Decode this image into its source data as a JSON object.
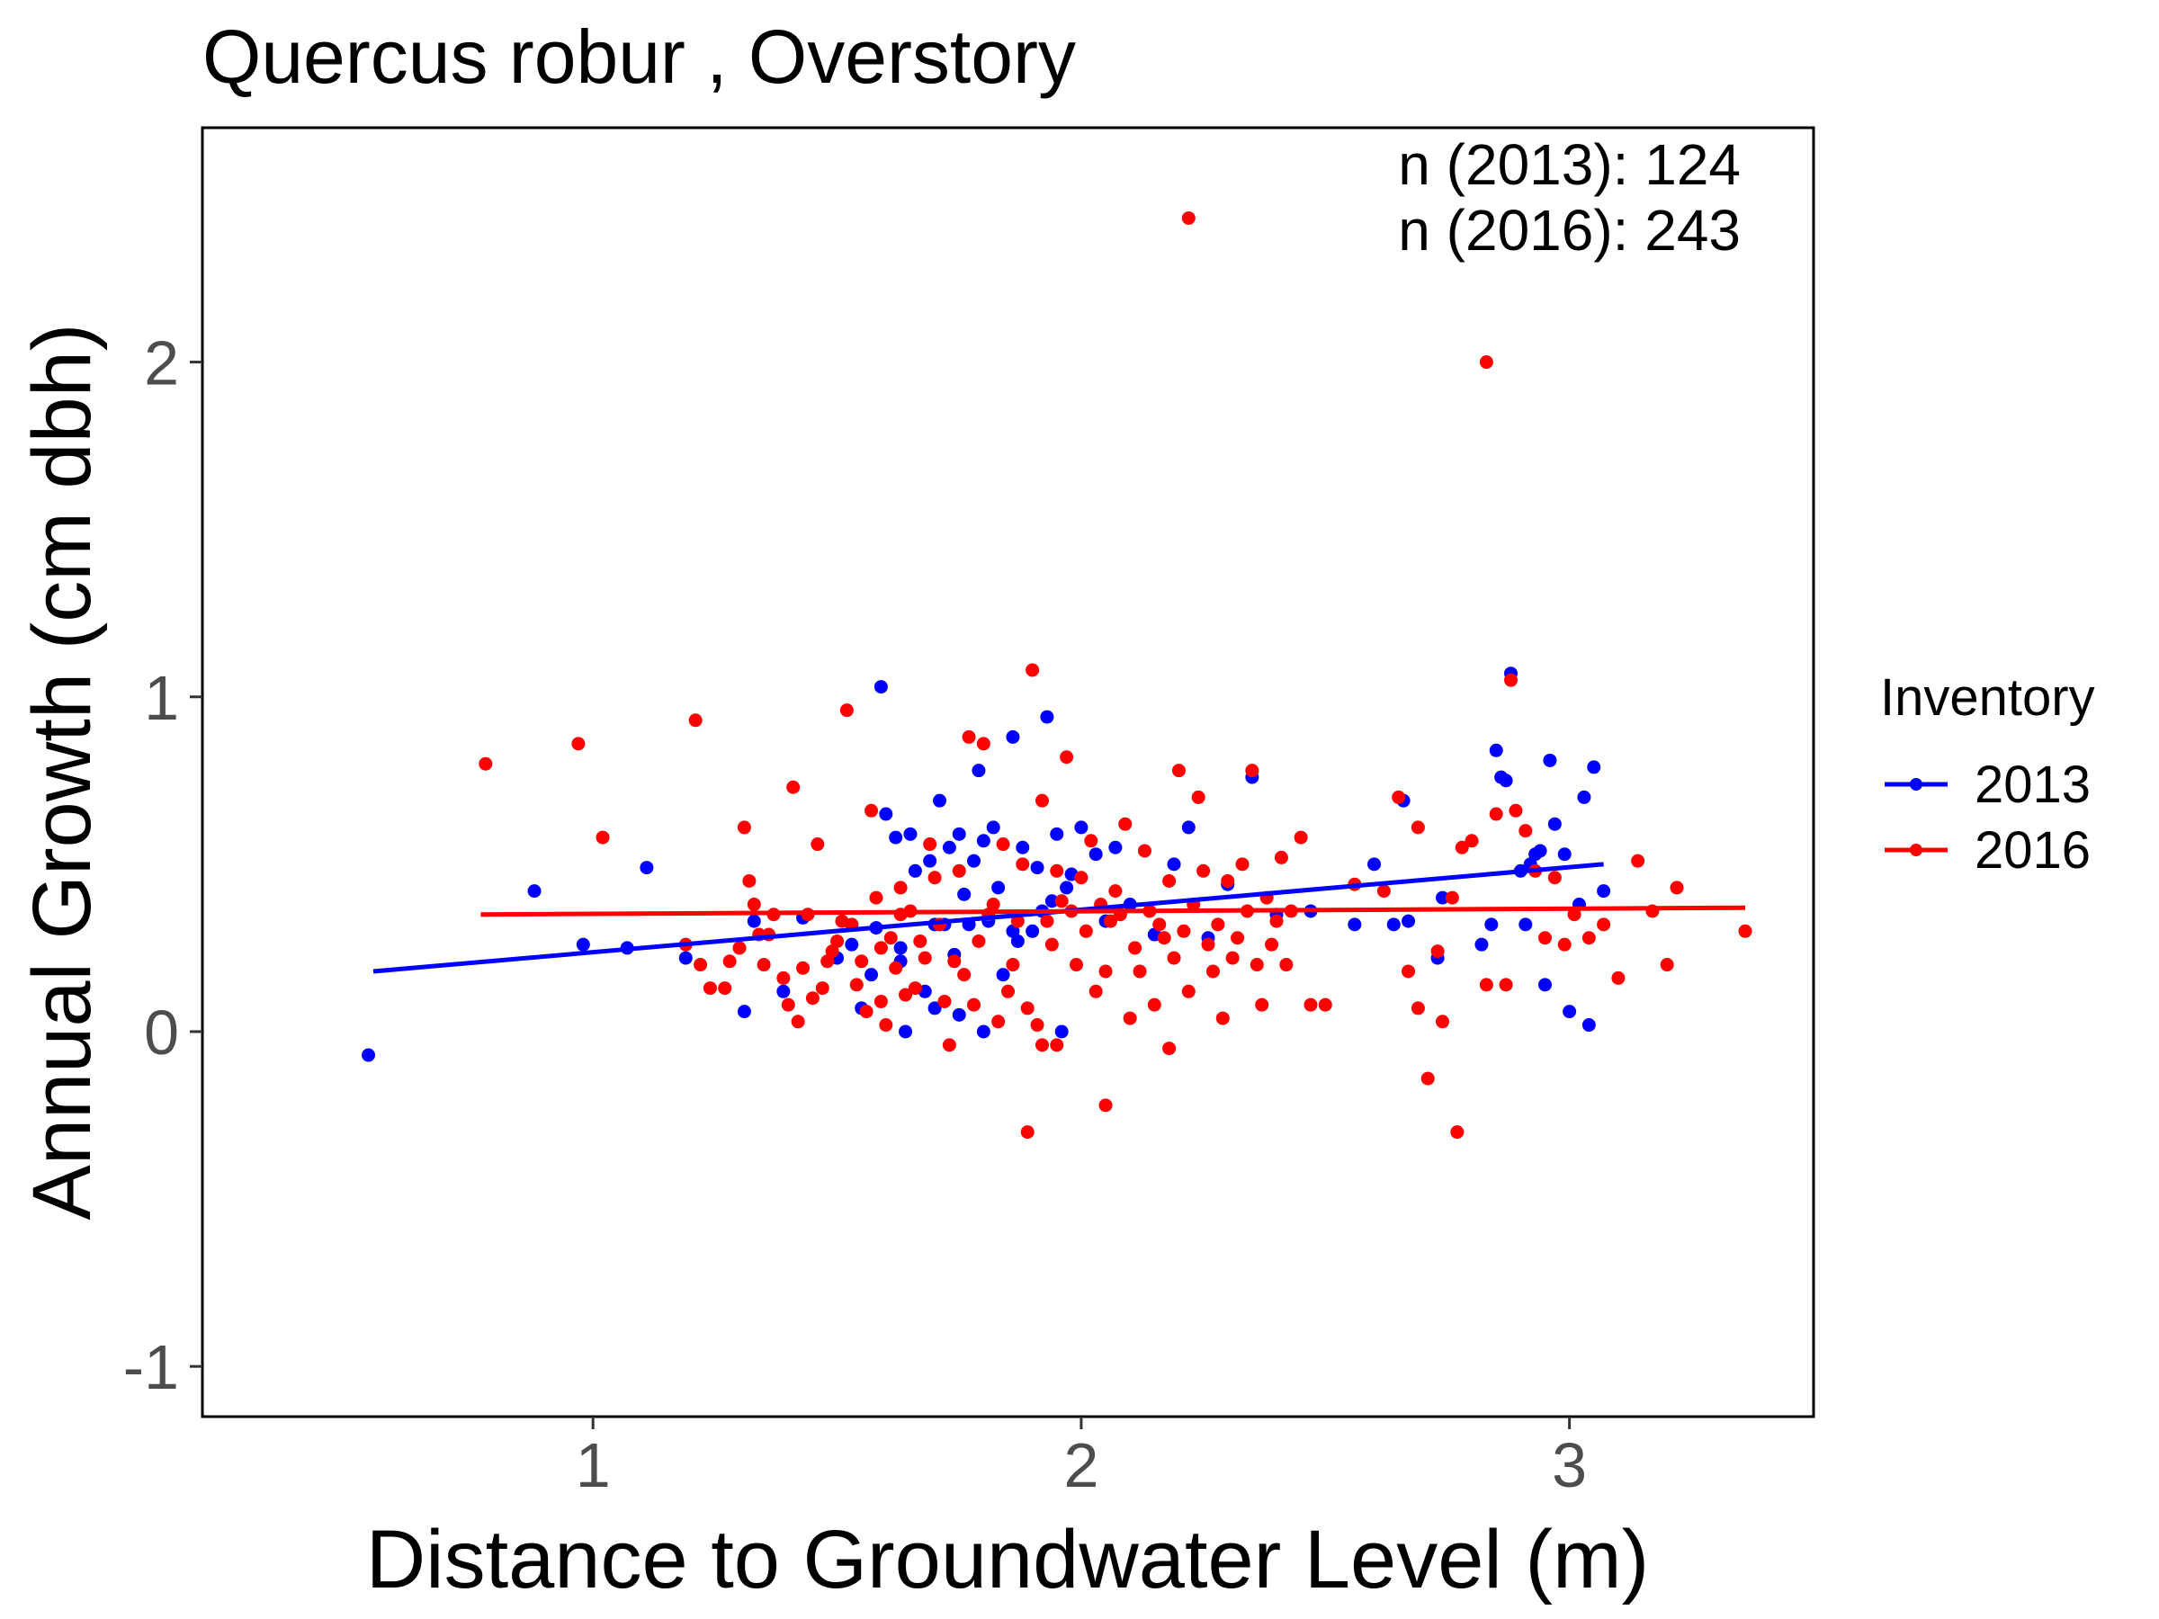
{
  "chart_data": {
    "type": "scatter",
    "title": "Quercus robur ,  Overstory",
    "xlabel": "Distance to Groundwater Level (m)",
    "ylabel": "Annual Growth (cm dbh)",
    "xlim": [
      0.2,
      3.5
    ],
    "ylim": [
      -1.15,
      2.7
    ],
    "xticks": [
      1,
      2,
      3
    ],
    "yticks": [
      -1,
      0,
      1,
      2
    ],
    "grid": false,
    "legend_title": "Inventory",
    "legend_position": "right",
    "annotations": [
      "n (2013):  124",
      "n (2016):  243"
    ],
    "series": [
      {
        "name": "2013",
        "color": "#0000ff",
        "trend": {
          "x": [
            0.55,
            3.07
          ],
          "y": [
            0.18,
            0.5
          ]
        },
        "points": [
          [
            0.54,
            -0.07
          ],
          [
            0.88,
            0.42
          ],
          [
            0.98,
            0.26
          ],
          [
            1.07,
            0.25
          ],
          [
            1.11,
            0.49
          ],
          [
            1.19,
            0.22
          ],
          [
            1.31,
            0.06
          ],
          [
            1.33,
            0.33
          ],
          [
            1.39,
            0.12
          ],
          [
            1.43,
            0.34
          ],
          [
            1.5,
            0.22
          ],
          [
            1.53,
            0.26
          ],
          [
            1.55,
            0.07
          ],
          [
            1.57,
            0.17
          ],
          [
            1.58,
            0.31
          ],
          [
            1.59,
            1.03
          ],
          [
            1.6,
            0.65
          ],
          [
            1.62,
            0.58
          ],
          [
            1.63,
            0.25
          ],
          [
            1.63,
            0.21
          ],
          [
            1.64,
            0.0
          ],
          [
            1.65,
            0.59
          ],
          [
            1.66,
            0.48
          ],
          [
            1.68,
            0.12
          ],
          [
            1.69,
            0.51
          ],
          [
            1.7,
            0.32
          ],
          [
            1.7,
            0.07
          ],
          [
            1.71,
            0.69
          ],
          [
            1.72,
            0.32
          ],
          [
            1.73,
            0.55
          ],
          [
            1.74,
            0.23
          ],
          [
            1.75,
            0.05
          ],
          [
            1.75,
            0.59
          ],
          [
            1.76,
            0.41
          ],
          [
            1.77,
            0.32
          ],
          [
            1.78,
            0.51
          ],
          [
            1.79,
            0.78
          ],
          [
            1.8,
            0.57
          ],
          [
            1.8,
            0.0
          ],
          [
            1.81,
            0.34
          ],
          [
            1.81,
            0.33
          ],
          [
            1.82,
            0.61
          ],
          [
            1.83,
            0.43
          ],
          [
            1.84,
            0.17
          ],
          [
            1.86,
            0.3
          ],
          [
            1.86,
            0.88
          ],
          [
            1.87,
            0.27
          ],
          [
            1.88,
            0.55
          ],
          [
            1.9,
            0.3
          ],
          [
            1.91,
            0.49
          ],
          [
            1.92,
            0.36
          ],
          [
            1.93,
            0.94
          ],
          [
            1.94,
            0.39
          ],
          [
            1.95,
            0.59
          ],
          [
            1.96,
            0.0
          ],
          [
            1.97,
            0.43
          ],
          [
            1.98,
            0.47
          ],
          [
            2.0,
            0.61
          ],
          [
            2.03,
            0.53
          ],
          [
            2.05,
            0.33
          ],
          [
            2.07,
            0.55
          ],
          [
            2.1,
            0.38
          ],
          [
            2.15,
            0.29
          ],
          [
            2.19,
            0.5
          ],
          [
            2.22,
            0.61
          ],
          [
            2.26,
            0.28
          ],
          [
            2.3,
            0.44
          ],
          [
            2.35,
            0.76
          ],
          [
            2.4,
            0.35
          ],
          [
            2.47,
            0.36
          ],
          [
            2.56,
            0.32
          ],
          [
            2.6,
            0.5
          ],
          [
            2.64,
            0.32
          ],
          [
            2.66,
            0.69
          ],
          [
            2.67,
            0.33
          ],
          [
            2.73,
            0.22
          ],
          [
            2.74,
            0.4
          ],
          [
            2.82,
            0.26
          ],
          [
            2.84,
            0.32
          ],
          [
            2.85,
            0.84
          ],
          [
            2.86,
            0.76
          ],
          [
            2.87,
            0.75
          ],
          [
            2.88,
            1.07
          ],
          [
            2.9,
            0.48
          ],
          [
            2.91,
            0.32
          ],
          [
            2.92,
            0.5
          ],
          [
            2.93,
            0.53
          ],
          [
            2.94,
            0.54
          ],
          [
            2.95,
            0.14
          ],
          [
            2.96,
            0.81
          ],
          [
            2.97,
            0.62
          ],
          [
            2.99,
            0.53
          ],
          [
            3.0,
            0.06
          ],
          [
            3.02,
            0.38
          ],
          [
            3.03,
            0.7
          ],
          [
            3.04,
            0.02
          ],
          [
            3.05,
            0.79
          ],
          [
            3.07,
            0.42
          ]
        ]
      },
      {
        "name": "2016",
        "color": "#ff0000",
        "trend": {
          "x": [
            0.77,
            3.36
          ],
          "y": [
            0.35,
            0.37
          ]
        },
        "points": [
          [
            0.78,
            0.8
          ],
          [
            0.97,
            0.86
          ],
          [
            1.02,
            0.58
          ],
          [
            1.19,
            0.26
          ],
          [
            1.21,
            0.93
          ],
          [
            1.22,
            0.2
          ],
          [
            1.24,
            0.13
          ],
          [
            1.27,
            0.13
          ],
          [
            1.28,
            0.21
          ],
          [
            1.3,
            0.25
          ],
          [
            1.31,
            0.61
          ],
          [
            1.32,
            0.45
          ],
          [
            1.33,
            0.38
          ],
          [
            1.34,
            0.29
          ],
          [
            1.35,
            0.2
          ],
          [
            1.36,
            0.29
          ],
          [
            1.37,
            0.35
          ],
          [
            1.39,
            0.16
          ],
          [
            1.4,
            0.08
          ],
          [
            1.41,
            0.73
          ],
          [
            1.42,
            0.03
          ],
          [
            1.43,
            0.19
          ],
          [
            1.44,
            0.35
          ],
          [
            1.45,
            0.1
          ],
          [
            1.46,
            0.56
          ],
          [
            1.47,
            0.13
          ],
          [
            1.48,
            0.21
          ],
          [
            1.49,
            0.24
          ],
          [
            1.5,
            0.27
          ],
          [
            1.51,
            0.33
          ],
          [
            1.52,
            0.96
          ],
          [
            1.53,
            0.32
          ],
          [
            1.54,
            0.14
          ],
          [
            1.55,
            0.21
          ],
          [
            1.56,
            0.06
          ],
          [
            1.57,
            0.66
          ],
          [
            1.58,
            0.4
          ],
          [
            1.59,
            0.09
          ],
          [
            1.6,
            0.02
          ],
          [
            1.61,
            0.28
          ],
          [
            1.62,
            0.19
          ],
          [
            1.63,
            0.35
          ],
          [
            1.64,
            0.11
          ],
          [
            1.65,
            0.36
          ],
          [
            1.66,
            0.13
          ],
          [
            1.67,
            0.27
          ],
          [
            1.68,
            0.22
          ],
          [
            1.69,
            0.56
          ],
          [
            1.7,
            0.46
          ],
          [
            1.71,
            0.32
          ],
          [
            1.72,
            0.09
          ],
          [
            1.73,
            -0.04
          ],
          [
            1.74,
            0.21
          ],
          [
            1.75,
            0.48
          ],
          [
            1.76,
            0.17
          ],
          [
            1.77,
            0.88
          ],
          [
            1.78,
            0.08
          ],
          [
            1.79,
            0.27
          ],
          [
            1.8,
            0.86
          ],
          [
            1.81,
            0.35
          ],
          [
            1.82,
            0.38
          ],
          [
            1.83,
            0.03
          ],
          [
            1.84,
            0.56
          ],
          [
            1.85,
            0.12
          ],
          [
            1.86,
            0.2
          ],
          [
            1.87,
            0.33
          ],
          [
            1.88,
            0.5
          ],
          [
            1.89,
            0.07
          ],
          [
            1.9,
            1.08
          ],
          [
            1.91,
            0.02
          ],
          [
            1.92,
            0.69
          ],
          [
            1.93,
            0.33
          ],
          [
            1.94,
            0.26
          ],
          [
            1.95,
            0.48
          ],
          [
            1.96,
            0.39
          ],
          [
            1.97,
            0.82
          ],
          [
            1.98,
            0.36
          ],
          [
            1.99,
            0.2
          ],
          [
            2.0,
            0.46
          ],
          [
            2.01,
            0.3
          ],
          [
            2.02,
            0.57
          ],
          [
            2.03,
            0.12
          ],
          [
            2.04,
            0.38
          ],
          [
            2.05,
            0.18
          ],
          [
            2.06,
            0.33
          ],
          [
            2.07,
            0.42
          ],
          [
            2.08,
            0.35
          ],
          [
            2.09,
            0.62
          ],
          [
            2.1,
            0.04
          ],
          [
            2.11,
            0.25
          ],
          [
            2.12,
            0.18
          ],
          [
            2.13,
            0.54
          ],
          [
            2.14,
            0.36
          ],
          [
            2.15,
            0.08
          ],
          [
            2.16,
            0.32
          ],
          [
            2.17,
            0.28
          ],
          [
            2.18,
            0.45
          ],
          [
            2.19,
            0.22
          ],
          [
            2.2,
            0.78
          ],
          [
            2.21,
            0.3
          ],
          [
            2.22,
            0.12
          ],
          [
            2.23,
            0.38
          ],
          [
            2.24,
            0.7
          ],
          [
            2.25,
            0.48
          ],
          [
            2.26,
            0.26
          ],
          [
            2.27,
            0.18
          ],
          [
            2.28,
            0.32
          ],
          [
            2.29,
            0.04
          ],
          [
            2.3,
            0.45
          ],
          [
            2.31,
            0.22
          ],
          [
            2.32,
            0.28
          ],
          [
            2.33,
            0.5
          ],
          [
            2.34,
            0.36
          ],
          [
            2.35,
            0.78
          ],
          [
            2.36,
            0.2
          ],
          [
            2.37,
            0.08
          ],
          [
            2.38,
            0.4
          ],
          [
            2.39,
            0.26
          ],
          [
            2.4,
            0.33
          ],
          [
            2.41,
            0.52
          ],
          [
            2.42,
            0.2
          ],
          [
            2.43,
            0.36
          ],
          [
            2.45,
            0.58
          ],
          [
            2.47,
            0.08
          ],
          [
            2.5,
            0.08
          ],
          [
            2.22,
            2.43
          ],
          [
            2.83,
            2.0
          ],
          [
            2.88,
            1.05
          ],
          [
            2.65,
            0.7
          ],
          [
            2.69,
            0.61
          ],
          [
            2.73,
            0.24
          ],
          [
            2.76,
            0.4
          ],
          [
            2.78,
            0.55
          ],
          [
            2.8,
            0.57
          ],
          [
            2.83,
            0.14
          ],
          [
            2.85,
            0.65
          ],
          [
            2.87,
            0.14
          ],
          [
            2.89,
            0.66
          ],
          [
            2.91,
            0.6
          ],
          [
            2.93,
            0.48
          ],
          [
            2.95,
            0.28
          ],
          [
            2.97,
            0.46
          ],
          [
            2.99,
            0.26
          ],
          [
            3.01,
            0.35
          ],
          [
            3.04,
            0.28
          ],
          [
            3.07,
            0.32
          ],
          [
            3.1,
            0.16
          ],
          [
            3.14,
            0.51
          ],
          [
            3.17,
            0.36
          ],
          [
            3.2,
            0.2
          ],
          [
            3.22,
            0.43
          ],
          [
            3.36,
            0.3
          ],
          [
            2.67,
            0.18
          ],
          [
            2.69,
            0.07
          ],
          [
            2.71,
            -0.14
          ],
          [
            2.74,
            0.03
          ],
          [
            2.77,
            -0.3
          ],
          [
            1.89,
            -0.3
          ],
          [
            2.05,
            -0.22
          ],
          [
            1.92,
            -0.04
          ],
          [
            1.95,
            -0.04
          ],
          [
            2.18,
            -0.05
          ],
          [
            2.56,
            0.44
          ],
          [
            2.62,
            0.42
          ],
          [
            1.59,
            0.25
          ],
          [
            1.63,
            0.43
          ]
        ]
      }
    ]
  }
}
